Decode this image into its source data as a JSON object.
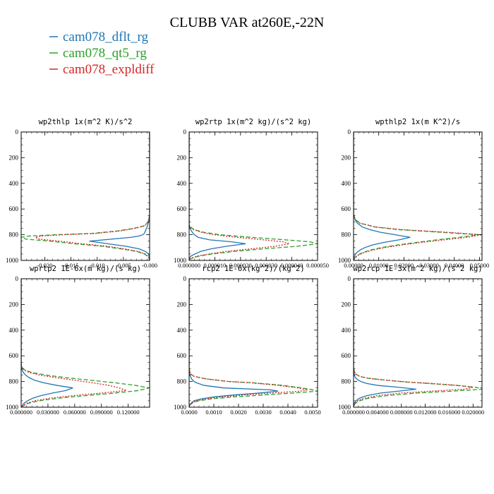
{
  "figure": {
    "title": "CLUBB VAR at260E,-22N"
  },
  "legend": [
    {
      "label": "cam078_dflt_rg",
      "color": "#1f77b4",
      "dash": "solid"
    },
    {
      "label": "cam078_qt5_rg",
      "color": "#2ca02c",
      "dash": "dashed"
    },
    {
      "label": "cam078_expldiff",
      "color": "#d62728",
      "dash": "dotted"
    }
  ],
  "chart_data": [
    {
      "type": "line",
      "title": "wp2thlp   1x(m^2 K)/s^2",
      "ylim": [
        1000,
        0
      ],
      "xlim": [
        -0.0245,
        0.0
      ],
      "yticks": [
        "0",
        "200",
        "400",
        "600",
        "800",
        "1000"
      ],
      "yticks_values": [
        0,
        200,
        400,
        600,
        800,
        1000
      ],
      "xticks": [
        "-0.020",
        "-0.015",
        "-0.010",
        "-0.005",
        "-0.000"
      ],
      "xticks_values": [
        -0.02,
        -0.015,
        -0.01,
        -0.005,
        0.0
      ],
      "y": [
        0,
        650,
        700,
        730,
        750,
        770,
        790,
        800,
        810,
        820,
        835,
        850,
        870,
        890,
        910,
        930,
        950,
        970,
        985,
        1000
      ],
      "series": [
        {
          "name": "cam078_dflt_rg",
          "values": [
            0,
            0,
            -0.0002,
            -0.0004,
            -0.0006,
            -0.0008,
            -0.001,
            -0.0013,
            -0.002,
            -0.0035,
            -0.0075,
            -0.0115,
            -0.008,
            -0.0045,
            -0.002,
            -0.0008,
            -0.0002,
            -0.0001,
            -0.0001,
            0
          ]
        },
        {
          "name": "cam078_qt5_rg",
          "values": [
            0,
            0,
            -0.0003,
            -0.001,
            -0.003,
            -0.006,
            -0.011,
            -0.018,
            -0.023,
            -0.0245,
            -0.0235,
            -0.019,
            -0.0145,
            -0.009,
            -0.0055,
            -0.0025,
            -0.001,
            -0.0003,
            -0.0001,
            0
          ]
        },
        {
          "name": "cam078_expldiff",
          "values": [
            0,
            0,
            -0.0003,
            -0.0009,
            -0.0027,
            -0.0055,
            -0.0102,
            -0.0165,
            -0.0205,
            -0.0218,
            -0.021,
            -0.0172,
            -0.013,
            -0.008,
            -0.0048,
            -0.0022,
            -0.0008,
            -0.0003,
            -0.0001,
            0
          ]
        }
      ]
    },
    {
      "type": "line",
      "title": "wp2rtp   1x(m^2 kg)/(s^2 kg)",
      "ylim": [
        1000,
        0
      ],
      "xlim": [
        0.0,
        5e-05
      ],
      "yticks": [
        "0",
        "200",
        "400",
        "600",
        "800",
        "1000"
      ],
      "yticks_values": [
        0,
        200,
        400,
        600,
        800,
        1000
      ],
      "xticks": [
        "0.000000",
        "0.000010",
        "0.000020",
        "0.000030",
        "0.000040",
        "0.000050"
      ],
      "xticks_values": [
        0.0,
        1e-05,
        2e-05,
        3e-05,
        4e-05,
        5e-05
      ],
      "y": [
        0,
        720,
        740,
        760,
        780,
        800,
        820,
        840,
        855,
        870,
        890,
        910,
        930,
        950,
        965,
        980,
        990,
        1000
      ],
      "series": [
        {
          "name": "cam078_dflt_rg",
          "values": [
            0,
            0,
            2e-07,
            6e-07,
            1.2e-06,
            2e-06,
            3.5e-06,
            8e-06,
            1.65e-05,
            2.2e-05,
            1.45e-05,
            8.5e-06,
            4.5e-06,
            2.2e-06,
            8e-07,
            2e-07,
            1e-07,
            0
          ]
        },
        {
          "name": "cam078_qt5_rg",
          "values": [
            0,
            0,
            5e-07,
            2e-06,
            5.5e-06,
            1.2e-05,
            2.4e-05,
            3.75e-05,
            4.7e-05,
            5e-05,
            4.2e-05,
            2.9e-05,
            1.75e-05,
            9e-06,
            4.2e-06,
            1.5e-06,
            4e-07,
            0
          ]
        },
        {
          "name": "cam078_expldiff",
          "values": [
            0,
            0,
            4e-07,
            1.7e-06,
            4.5e-06,
            9.5e-06,
            1.85e-05,
            2.9e-05,
            3.65e-05,
            3.9e-05,
            3.35e-05,
            2.4e-05,
            1.45e-05,
            7.5e-06,
            3.5e-06,
            1.2e-06,
            3e-07,
            0
          ]
        }
      ]
    },
    {
      "type": "line",
      "title": "wpthlp2   1x(m K^2)/s",
      "ylim": [
        1000,
        0
      ],
      "xlim": [
        0.0,
        0.051
      ],
      "yticks": [
        "0",
        "200",
        "400",
        "600",
        "800",
        "1000"
      ],
      "yticks_values": [
        0,
        200,
        400,
        600,
        800,
        1000
      ],
      "xticks": [
        "0.00000",
        "0.01000",
        "0.02000",
        "0.03000",
        "0.04000",
        "0.05000"
      ],
      "xticks_values": [
        0.0,
        0.01,
        0.02,
        0.03,
        0.04,
        0.05
      ],
      "y": [
        0,
        640,
        680,
        710,
        740,
        760,
        780,
        800,
        820,
        840,
        860,
        880,
        900,
        920,
        940,
        960,
        980,
        1000
      ],
      "series": [
        {
          "name": "cam078_dflt_rg",
          "values": [
            0,
            0,
            0.0005,
            0.0015,
            0.0035,
            0.0065,
            0.0105,
            0.0165,
            0.0225,
            0.018,
            0.012,
            0.0075,
            0.0045,
            0.0025,
            0.0012,
            0.0005,
            0.0002,
            0
          ]
        },
        {
          "name": "cam078_qt5_rg",
          "values": [
            0,
            0,
            0.0006,
            0.0025,
            0.0085,
            0.0175,
            0.034,
            0.0495,
            0.042,
            0.033,
            0.025,
            0.0175,
            0.011,
            0.0065,
            0.0035,
            0.0015,
            0.0005,
            0
          ]
        },
        {
          "name": "cam078_expldiff",
          "values": [
            0,
            0,
            0.0006,
            0.0025,
            0.009,
            0.019,
            0.0365,
            0.051,
            0.045,
            0.036,
            0.027,
            0.019,
            0.0125,
            0.0075,
            0.004,
            0.0018,
            0.0006,
            0
          ]
        }
      ]
    },
    {
      "type": "line",
      "title": "wprtp2   1E-6x(m kg)/(s kg)",
      "ylim": [
        1000,
        0
      ],
      "xlim": [
        0.0,
        0.144
      ],
      "yticks": [
        "0",
        "200",
        "400",
        "600",
        "800",
        "1000"
      ],
      "yticks_values": [
        0,
        200,
        400,
        600,
        800,
        1000
      ],
      "xticks": [
        "0.000000",
        "0.030000",
        "0.060000",
        "0.090000",
        "0.120000"
      ],
      "xticks_values": [
        0.0,
        0.03,
        0.06,
        0.09,
        0.12
      ],
      "y": [
        0,
        660,
        690,
        710,
        730,
        750,
        770,
        790,
        810,
        830,
        850,
        870,
        890,
        910,
        930,
        950,
        970,
        990,
        1000
      ],
      "series": [
        {
          "name": "cam078_dflt_rg",
          "values": [
            0,
            0,
            0.0003,
            0.001,
            0.0025,
            0.005,
            0.009,
            0.015,
            0.025,
            0.04,
            0.058,
            0.05,
            0.035,
            0.022,
            0.013,
            0.007,
            0.003,
            0.001,
            0
          ]
        },
        {
          "name": "cam078_qt5_rg",
          "values": [
            0,
            0,
            0.001,
            0.004,
            0.012,
            0.028,
            0.05,
            0.078,
            0.105,
            0.128,
            0.143,
            0.132,
            0.105,
            0.072,
            0.042,
            0.02,
            0.008,
            0.002,
            0
          ]
        },
        {
          "name": "cam078_expldiff",
          "values": [
            0,
            0,
            0.0008,
            0.003,
            0.009,
            0.021,
            0.039,
            0.06,
            0.08,
            0.098,
            0.11,
            0.118,
            0.09,
            0.058,
            0.032,
            0.015,
            0.006,
            0.0015,
            0
          ]
        }
      ]
    },
    {
      "type": "line",
      "title": "rcp2   1E-6x(kg^2)/(kg^2)",
      "ylim": [
        1000,
        0
      ],
      "xlim": [
        0.0,
        0.0052
      ],
      "yticks": [
        "0",
        "200",
        "400",
        "600",
        "800",
        "1000"
      ],
      "yticks_values": [
        0,
        200,
        400,
        600,
        800,
        1000
      ],
      "xticks": [
        "0.0000",
        "0.0010",
        "0.0020",
        "0.0030",
        "0.0040",
        "0.0050"
      ],
      "xticks_values": [
        0.0,
        0.001,
        0.002,
        0.003,
        0.004,
        0.005
      ],
      "y": [
        0,
        700,
        740,
        760,
        780,
        800,
        810,
        830,
        850,
        865,
        875,
        890,
        905,
        920,
        935,
        950,
        965,
        980,
        1000
      ],
      "series": [
        {
          "name": "cam078_dflt_rg",
          "values": [
            0,
            0,
            2e-05,
            5e-05,
            0.0001,
            0.0002,
            0.0003,
            0.0006,
            0.0014,
            0.0033,
            0.0036,
            0.0028,
            0.0018,
            0.001,
            0.0005,
            0.0002,
            0.0001,
            3e-05,
            0
          ]
        },
        {
          "name": "cam078_qt5_rg",
          "values": [
            0,
            0,
            5e-05,
            0.0002,
            0.0007,
            0.0016,
            0.0026,
            0.0038,
            0.0046,
            0.005,
            0.0052,
            0.0042,
            0.003,
            0.0018,
            0.0009,
            0.0004,
            0.00015,
            5e-05,
            0
          ]
        },
        {
          "name": "cam078_expldiff",
          "values": [
            0,
            0,
            5e-05,
            0.0002,
            0.0007,
            0.0016,
            0.0025,
            0.0036,
            0.0044,
            0.0048,
            0.0045,
            0.0033,
            0.0022,
            0.0013,
            0.0007,
            0.0003,
            0.0001,
            3e-05,
            0
          ]
        }
      ]
    },
    {
      "type": "line",
      "title": "wp2rcp   1E-3x(m^2 kg)/(s^2 kg)",
      "ylim": [
        1000,
        0
      ],
      "xlim": [
        0.0,
        0.0215
      ],
      "yticks": [
        "0",
        "200",
        "400",
        "600",
        "800",
        "1000"
      ],
      "yticks_values": [
        0,
        200,
        400,
        600,
        800,
        1000
      ],
      "xticks": [
        "0.000000",
        "0.004000",
        "0.008000",
        "0.012000",
        "0.016000",
        "0.020000"
      ],
      "xticks_values": [
        0.0,
        0.004,
        0.008,
        0.012,
        0.016,
        0.02
      ],
      "y": [
        0,
        700,
        740,
        760,
        775,
        790,
        805,
        815,
        830,
        845,
        860,
        875,
        890,
        910,
        930,
        950,
        970,
        985,
        1000
      ],
      "series": [
        {
          "name": "cam078_dflt_rg",
          "values": [
            0,
            0,
            0.0001,
            0.0002,
            0.0004,
            0.0008,
            0.0015,
            0.0022,
            0.004,
            0.0075,
            0.0105,
            0.0075,
            0.0045,
            0.0022,
            0.001,
            0.0004,
            0.0001,
            3e-05,
            0
          ]
        },
        {
          "name": "cam078_qt5_rg",
          "values": [
            0,
            0,
            0.0003,
            0.001,
            0.0025,
            0.0055,
            0.009,
            0.0125,
            0.017,
            0.0205,
            0.0215,
            0.0165,
            0.0105,
            0.0055,
            0.0025,
            0.001,
            0.0003,
            0.0001,
            0
          ]
        },
        {
          "name": "cam078_expldiff",
          "values": [
            0,
            0,
            0.0003,
            0.001,
            0.0025,
            0.0055,
            0.0095,
            0.013,
            0.0175,
            0.02,
            0.0185,
            0.013,
            0.0078,
            0.004,
            0.0018,
            0.0007,
            0.0002,
            0.0001,
            0
          ]
        }
      ]
    }
  ]
}
